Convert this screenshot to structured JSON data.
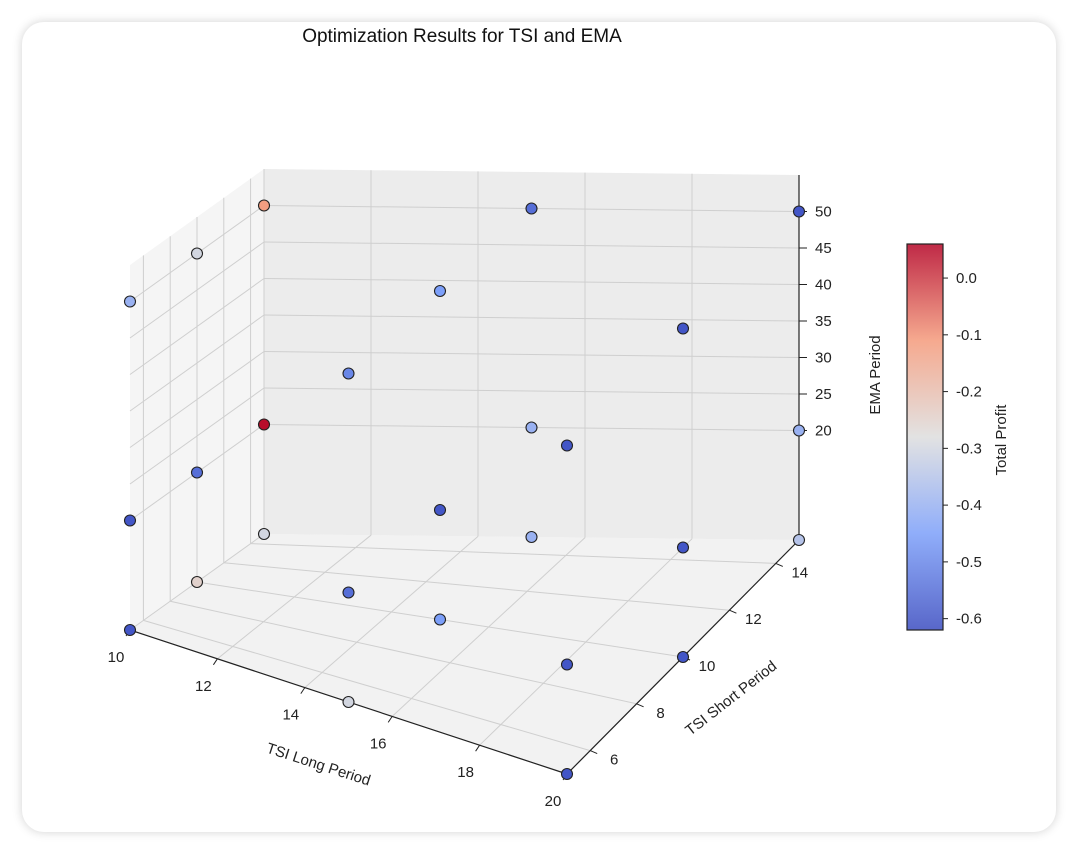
{
  "chart_data": {
    "type": "scatter3d",
    "title": "Optimization Results for TSI and EMA",
    "xlabel": "TSI Long Period",
    "ylabel": "TSI Short Period",
    "zlabel": "EMA Period",
    "colorbar_label": "Total Profit",
    "x_ticks": [
      "10",
      "12",
      "14",
      "16",
      "18",
      "20"
    ],
    "y_ticks": [
      "6",
      "8",
      "10",
      "12",
      "14"
    ],
    "z_ticks": [
      "20",
      "25",
      "30",
      "35",
      "40",
      "45",
      "50"
    ],
    "colorbar_ticks": [
      "0.0",
      "-0.1",
      "-0.2",
      "-0.3",
      "-0.4",
      "-0.5",
      "-0.6"
    ],
    "colorbar_range": [
      -0.62,
      0.06
    ],
    "points": [
      {
        "x": 10,
        "y": 5,
        "z": 50,
        "profit": -0.4
      },
      {
        "x": 15,
        "y": 5,
        "z": 50,
        "profit": -0.5
      },
      {
        "x": 20,
        "y": 5,
        "z": 50,
        "profit": -0.6
      },
      {
        "x": 10,
        "y": 10,
        "z": 50,
        "profit": -0.3
      },
      {
        "x": 15,
        "y": 10,
        "z": 50,
        "profit": -0.45
      },
      {
        "x": 20,
        "y": 10,
        "z": 50,
        "profit": -0.6
      },
      {
        "x": 10,
        "y": 15,
        "z": 50,
        "profit": -0.12
      },
      {
        "x": 15,
        "y": 15,
        "z": 50,
        "profit": -0.55
      },
      {
        "x": 20,
        "y": 15,
        "z": 50,
        "profit": -0.6
      },
      {
        "x": 10,
        "y": 5,
        "z": 20,
        "profit": -0.6
      },
      {
        "x": 15,
        "y": 5,
        "z": 20,
        "profit": -0.55
      },
      {
        "x": 20,
        "y": 5,
        "z": 20,
        "profit": -0.6
      },
      {
        "x": 10,
        "y": 10,
        "z": 20,
        "profit": -0.55
      },
      {
        "x": 15,
        "y": 10,
        "z": 20,
        "profit": -0.6
      },
      {
        "x": 20,
        "y": 10,
        "z": 20,
        "profit": -0.6
      },
      {
        "x": 10,
        "y": 15,
        "z": 20,
        "profit": 0.05
      },
      {
        "x": 15,
        "y": 15,
        "z": 20,
        "profit": -0.4
      },
      {
        "x": 20,
        "y": 15,
        "z": 20,
        "profit": -0.4
      },
      {
        "x": 10,
        "y": 5,
        "z": 5,
        "profit": -0.6
      },
      {
        "x": 15,
        "y": 5,
        "z": 5,
        "profit": -0.3
      },
      {
        "x": 20,
        "y": 5,
        "z": 5,
        "profit": -0.6
      },
      {
        "x": 10,
        "y": 10,
        "z": 5,
        "profit": -0.25
      },
      {
        "x": 15,
        "y": 10,
        "z": 5,
        "profit": -0.45
      },
      {
        "x": 20,
        "y": 10,
        "z": 5,
        "profit": -0.6
      },
      {
        "x": 10,
        "y": 15,
        "z": 5,
        "profit": -0.3
      },
      {
        "x": 15,
        "y": 15,
        "z": 5,
        "profit": -0.4
      },
      {
        "x": 20,
        "y": 15,
        "z": 5,
        "profit": -0.35
      }
    ]
  }
}
